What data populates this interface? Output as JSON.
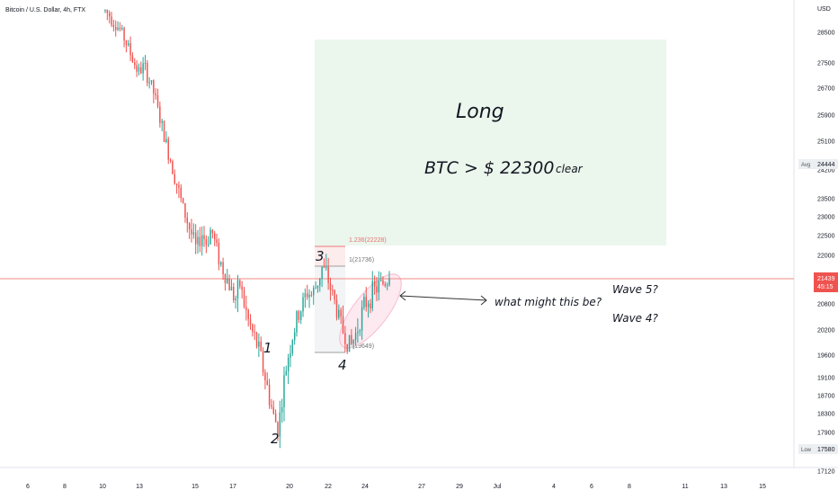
{
  "header": {
    "symbol_label": "Bitcoin / U.S. Dollar, 4h, FTX"
  },
  "currency_label": "USD",
  "price_axis": {
    "ticks": [
      28500,
      27500,
      26700,
      25900,
      25100,
      24200,
      23500,
      23000,
      22500,
      22000,
      20800,
      20200,
      19600,
      19100,
      18700,
      18300,
      17900,
      17120
    ],
    "avg": {
      "label": "Avg",
      "value": "24444"
    },
    "low": {
      "label": "Low",
      "value": "17580"
    },
    "last": {
      "price": "21439",
      "countdown": "45:15"
    }
  },
  "time_axis": {
    "labels": [
      "6",
      "8",
      "10",
      "13",
      "15",
      "17",
      "20",
      "22",
      "24",
      "27",
      "29",
      "Jul",
      "4",
      "6",
      "8",
      "11",
      "13",
      "15"
    ]
  },
  "annotations": {
    "long_title": "Long",
    "condition": "BTC > $ 22300",
    "clear": "clear",
    "question": "what might this be?",
    "wave5": "Wave 5?",
    "wave4": "Wave 4?",
    "wave_labels": [
      "1",
      "2",
      "3",
      "4"
    ],
    "fib_levels": [
      {
        "label": "1.236(22228)",
        "price": 22228,
        "color": "#e57373"
      },
      {
        "label": "1(21736)",
        "price": 21736,
        "color": "#9e9e9e"
      },
      {
        "label": "0(19649)",
        "price": 19649,
        "color": "#9e9e9e"
      }
    ]
  },
  "colors": {
    "up": "#26a69a",
    "down": "#ef5350",
    "long_zone": "#e8f5e9",
    "price_line": "#f28b82",
    "ellipse": "#fce4ec",
    "text": "#131722"
  },
  "chart_data": {
    "type": "candlestick",
    "title": "Bitcoin / U.S. Dollar, 4h, FTX",
    "ylabel": "USD",
    "ylim": [
      17000,
      29200
    ],
    "x_labels": [
      "6",
      "8",
      "10",
      "13",
      "15",
      "17",
      "20",
      "22",
      "24",
      "27",
      "29",
      "Jul",
      "4",
      "6",
      "8",
      "11",
      "13",
      "15"
    ],
    "last_price": 21439,
    "avg_price": 24444,
    "low_price": 17580,
    "long_target": 22300,
    "close_path": [
      29200,
      29050,
      28800,
      28600,
      28300,
      27900,
      27500,
      27200,
      27400,
      27000,
      26600,
      26000,
      25400,
      24800,
      24300,
      23800,
      23300,
      22900,
      22500,
      22100,
      22600,
      22300,
      22700,
      22200,
      21800,
      21500,
      21200,
      20900,
      21300,
      20700,
      20300,
      20000,
      19700,
      19200,
      18700,
      18200,
      18000,
      18900,
      19600,
      20100,
      20500,
      20800,
      21100,
      21000,
      21300,
      21700,
      21500,
      21100,
      20700,
      20300,
      20000,
      19800,
      20100,
      20500,
      20800,
      21000,
      21150,
      21250,
      21350,
      21439
    ]
  }
}
